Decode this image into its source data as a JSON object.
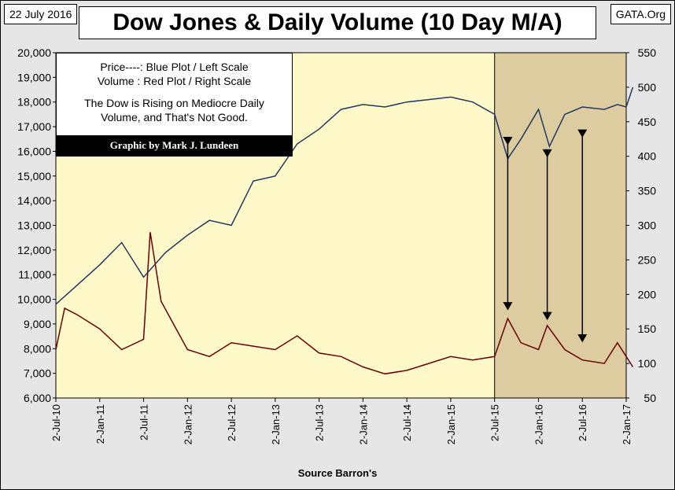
{
  "header": {
    "date": "22 July 2016",
    "site": "GATA.Org",
    "title": "Dow Jones & Daily Volume (10 Day M/A)"
  },
  "note": {
    "lines": [
      "Price----: Blue Plot / Left Scale",
      "Volume : Red Plot / Right Scale"
    ],
    "comment": [
      "The Dow is Rising on Mediocre Daily",
      "Volume, and That's Not Good."
    ],
    "credit": "Graphic by Mark J. Lundeen"
  },
  "source": "Source Barron's",
  "colors": {
    "plot_bg": "#fff8c8",
    "shade_bg": "#dccca0",
    "price": "#1f3864",
    "volume": "#6b0000"
  },
  "chart_data": {
    "type": "line",
    "title": "Dow Jones & Daily Volume (10 Day M/A)",
    "x_labels": [
      "2-Jul-10",
      "2-Jan-11",
      "2-Jul-11",
      "2-Jan-12",
      "2-Jul-12",
      "2-Jan-13",
      "2-Jul-13",
      "2-Jan-14",
      "2-Jul-14",
      "2-Jan-15",
      "2-Jul-15",
      "2-Jan-16",
      "2-Jul-16",
      "2-Jan-17"
    ],
    "y_left": {
      "min": 6000,
      "max": 20000,
      "step": 1000,
      "ticks": [
        "6,000",
        "7,000",
        "8,000",
        "9,000",
        "10,000",
        "11,000",
        "12,000",
        "13,000",
        "14,000",
        "15,000",
        "16,000",
        "17,000",
        "18,000",
        "19,000",
        "20,000"
      ]
    },
    "y_right": {
      "min": 50,
      "max": 550,
      "step": 50,
      "ticks": [
        "50",
        "100",
        "150",
        "200",
        "250",
        "300",
        "350",
        "400",
        "450",
        "500",
        "550"
      ]
    },
    "shaded_range": [
      10.0,
      13.0
    ],
    "series": [
      {
        "name": "Dow Jones (left scale)",
        "points": [
          [
            0,
            9800
          ],
          [
            0.5,
            10600
          ],
          [
            1,
            11400
          ],
          [
            1.5,
            12300
          ],
          [
            2,
            10900
          ],
          [
            2.5,
            11900
          ],
          [
            3,
            12600
          ],
          [
            3.5,
            13200
          ],
          [
            4,
            13000
          ],
          [
            4.5,
            14800
          ],
          [
            5,
            15000
          ],
          [
            5.5,
            16300
          ],
          [
            6,
            16900
          ],
          [
            6.5,
            17700
          ],
          [
            7,
            17900
          ],
          [
            7.5,
            17800
          ],
          [
            8,
            18000
          ],
          [
            8.5,
            18100
          ],
          [
            9,
            18200
          ],
          [
            9.5,
            18000
          ],
          [
            10,
            17500
          ],
          [
            10.3,
            15700
          ],
          [
            10.6,
            16500
          ],
          [
            11,
            17700
          ],
          [
            11.25,
            16200
          ],
          [
            11.6,
            17500
          ],
          [
            12,
            17800
          ],
          [
            12.5,
            17700
          ],
          [
            12.8,
            17900
          ],
          [
            13,
            17800
          ],
          [
            13.15,
            18600
          ]
        ]
      },
      {
        "name": "Daily Volume 10-Day M/A (right scale)",
        "points": [
          [
            0,
            120
          ],
          [
            0.2,
            180
          ],
          [
            0.5,
            170
          ],
          [
            1,
            150
          ],
          [
            1.5,
            120
          ],
          [
            2,
            135
          ],
          [
            2.15,
            290
          ],
          [
            2.4,
            190
          ],
          [
            3,
            120
          ],
          [
            3.5,
            110
          ],
          [
            4,
            130
          ],
          [
            4.5,
            125
          ],
          [
            5,
            120
          ],
          [
            5.5,
            140
          ],
          [
            6,
            115
          ],
          [
            6.5,
            110
          ],
          [
            7,
            95
          ],
          [
            7.5,
            85
          ],
          [
            8,
            90
          ],
          [
            8.5,
            100
          ],
          [
            9,
            110
          ],
          [
            9.5,
            105
          ],
          [
            10,
            110
          ],
          [
            10.3,
            165
          ],
          [
            10.6,
            130
          ],
          [
            11,
            120
          ],
          [
            11.2,
            155
          ],
          [
            11.6,
            120
          ],
          [
            12,
            105
          ],
          [
            12.5,
            100
          ],
          [
            12.8,
            130
          ],
          [
            13,
            110
          ],
          [
            13.15,
            95
          ]
        ]
      }
    ],
    "annotations": [
      {
        "from": [
          10.3,
          16300
        ],
        "to": [
          10.3,
          9600
        ]
      },
      {
        "from": [
          11.2,
          15800
        ],
        "to": [
          11.2,
          9200
        ]
      },
      {
        "from": [
          12.0,
          16600
        ],
        "to": [
          12.0,
          8300
        ]
      }
    ],
    "xlabel": "Source Barron's"
  }
}
